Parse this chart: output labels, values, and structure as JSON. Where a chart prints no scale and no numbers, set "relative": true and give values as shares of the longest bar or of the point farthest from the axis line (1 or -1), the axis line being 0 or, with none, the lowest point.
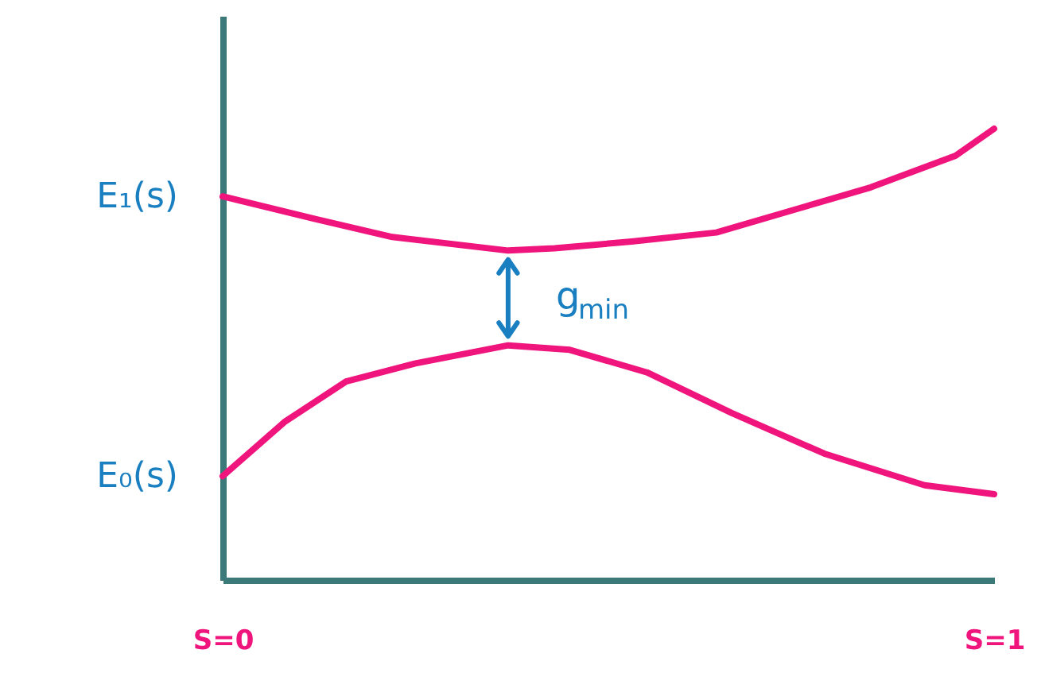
{
  "chart_data": {
    "type": "line",
    "relative": true,
    "xlim": [
      0,
      1
    ],
    "xticks": [
      {
        "value": 0,
        "label": "S=0"
      },
      {
        "value": 1,
        "label": "S=1"
      }
    ],
    "series": [
      {
        "name": "E₁(s)",
        "color": "#f0157d",
        "x": [
          0,
          0.12,
          0.22,
          0.37,
          0.43,
          0.53,
          0.64,
          0.74,
          0.84,
          0.95,
          1
        ],
        "values": [
          0.85,
          0.8,
          0.76,
          0.73,
          0.735,
          0.75,
          0.77,
          0.82,
          0.87,
          0.94,
          1
        ]
      },
      {
        "name": "E₀(s)",
        "color": "#f0157d",
        "x": [
          0,
          0.08,
          0.16,
          0.25,
          0.37,
          0.45,
          0.55,
          0.66,
          0.78,
          0.91,
          1
        ],
        "values": [
          0.23,
          0.35,
          0.44,
          0.48,
          0.52,
          0.51,
          0.46,
          0.37,
          0.28,
          0.21,
          0.19
        ]
      }
    ],
    "annotations": [
      "g$_{min}$"
    ]
  }
}
